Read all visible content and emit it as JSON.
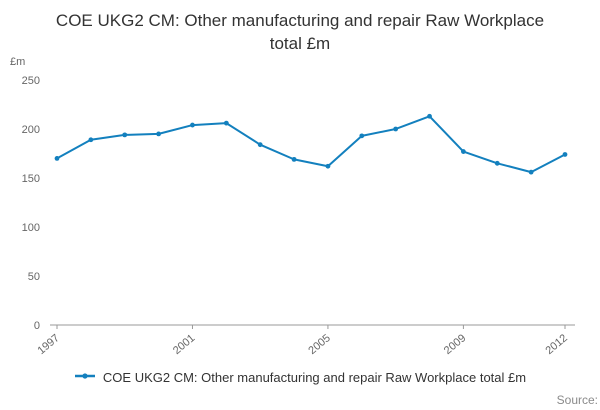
{
  "title": "COE UKG2 CM: Other manufacturing and repair Raw Workplace total £m",
  "y_axis_unit": "£m",
  "source_label": "Source:",
  "legend": {
    "label": "COE UKG2 CM: Other manufacturing and repair Raw Workplace total £m"
  },
  "colors": {
    "line": "#1380be",
    "axis_text": "#666666",
    "axis_line": "#999999",
    "title_text": "#333333"
  },
  "chart_data": {
    "type": "line",
    "title": "COE UKG2 CM: Other manufacturing and repair Raw Workplace total £m",
    "xlabel": "",
    "ylabel": "£m",
    "x": [
      1997,
      1998,
      1999,
      2000,
      2001,
      2002,
      2003,
      2004,
      2005,
      2006,
      2007,
      2008,
      2009,
      2010,
      2011,
      2012
    ],
    "values": [
      170,
      189,
      194,
      195,
      204,
      206,
      184,
      169,
      162,
      193,
      200,
      213,
      177,
      165,
      156,
      174
    ],
    "ylim": [
      0,
      250
    ],
    "yticks": [
      0,
      50,
      100,
      150,
      200,
      250
    ],
    "xtick_labels": [
      1997,
      2001,
      2005,
      2009,
      2012
    ],
    "grid": false,
    "legend_position": "bottom",
    "marker": "dot"
  }
}
